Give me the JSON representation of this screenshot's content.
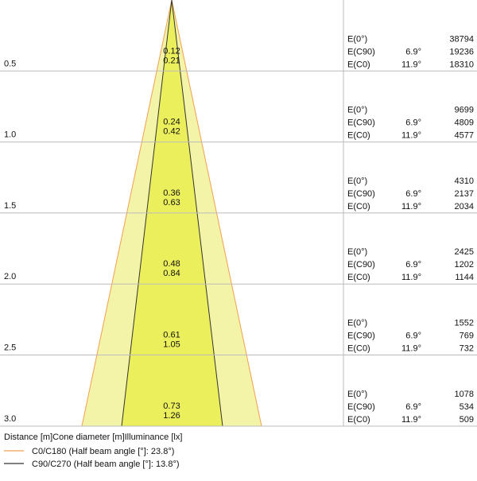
{
  "rows": [
    {
      "distance": "0.5",
      "diameter_c90": "0.12",
      "diameter_c0": "0.21",
      "illuminance": [
        {
          "label": "E(0°)",
          "value": "38794"
        },
        {
          "label": "E(C90)",
          "angle": "6.9°",
          "value": "19236"
        },
        {
          "label": "E(C0)",
          "angle": "11.9°",
          "value": "18310"
        }
      ]
    },
    {
      "distance": "1.0",
      "diameter_c90": "0.24",
      "diameter_c0": "0.42",
      "illuminance": [
        {
          "label": "E(0°)",
          "value": "9699"
        },
        {
          "label": "E(C90)",
          "angle": "6.9°",
          "value": "4809"
        },
        {
          "label": "E(C0)",
          "angle": "11.9°",
          "value": "4577"
        }
      ]
    },
    {
      "distance": "1.5",
      "diameter_c90": "0.36",
      "diameter_c0": "0.63",
      "illuminance": [
        {
          "label": "E(0°)",
          "value": "4310"
        },
        {
          "label": "E(C90)",
          "angle": "6.9°",
          "value": "2137"
        },
        {
          "label": "E(C0)",
          "angle": "11.9°",
          "value": "2034"
        }
      ]
    },
    {
      "distance": "2.0",
      "diameter_c90": "0.48",
      "diameter_c0": "0.84",
      "illuminance": [
        {
          "label": "E(0°)",
          "value": "2425"
        },
        {
          "label": "E(C90)",
          "angle": "6.9°",
          "value": "1202"
        },
        {
          "label": "E(C0)",
          "angle": "11.9°",
          "value": "1144"
        }
      ]
    },
    {
      "distance": "2.5",
      "diameter_c90": "0.61",
      "diameter_c0": "1.05",
      "illuminance": [
        {
          "label": "E(0°)",
          "value": "1552"
        },
        {
          "label": "E(C90)",
          "angle": "6.9°",
          "value": "769"
        },
        {
          "label": "E(C0)",
          "angle": "11.9°",
          "value": "732"
        }
      ]
    },
    {
      "distance": "3.0",
      "diameter_c90": "0.73",
      "diameter_c0": "1.26",
      "illuminance": [
        {
          "label": "E(0°)",
          "value": "1078"
        },
        {
          "label": "E(C90)",
          "angle": "6.9°",
          "value": "534"
        },
        {
          "label": "E(C0)",
          "angle": "11.9°",
          "value": "509"
        }
      ]
    }
  ],
  "header": [
    "Distance [m]",
    "Cone diameter [m]",
    "Illuminance [lx]"
  ],
  "legend": [
    {
      "name": "C0/C180 (Half beam angle [°]: 23.8°)",
      "color": "#f0a050"
    },
    {
      "name": "C90/C270 (Half beam angle [°]: 13.8°)",
      "color": "#333333"
    }
  ]
}
